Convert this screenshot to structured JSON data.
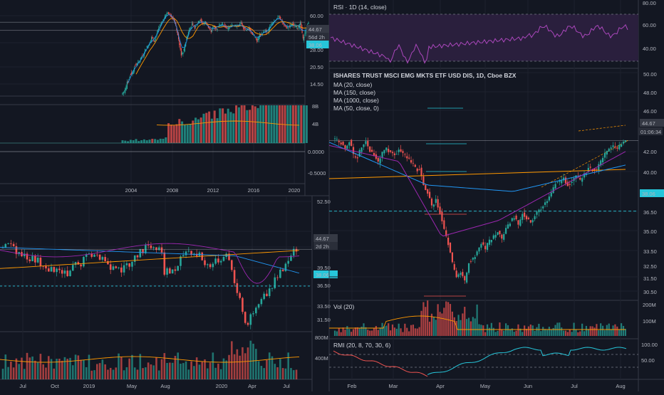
{
  "colors": {
    "bg": "#131722",
    "grid": "#1e222d",
    "up": "#26a69a",
    "down": "#ef5350",
    "axis": "#b2b5be",
    "highlight": "#26c6da",
    "rsi_bg": "#3d2556",
    "rsi_line": "#9c27b0",
    "ma20": "#f5f5f5",
    "ma150": "#2196f3",
    "ma1000": "#ff9800",
    "ma50": "#9c27b0",
    "sep": "#363a45"
  },
  "chart_data": [
    {
      "id": "monthly",
      "type": "candlestick",
      "x_labels": [
        "2004",
        "2008",
        "2012",
        "2016",
        "2020"
      ],
      "price_axis": [
        "60.00",
        "44.67",
        "38.06",
        "28.00",
        "20.50",
        "14.50"
      ],
      "last_price": "44.67",
      "countdown": "56d 2h",
      "horizontal_level": "38.06",
      "volume_axis": [
        "8B",
        "4B"
      ],
      "oscillator_axis": [
        "0.0000",
        "-0.5000"
      ],
      "ylim": [
        10,
        64
      ],
      "series": [
        {
          "type": "candle",
          "values": [
            [
              2003.5,
              11,
              12
            ],
            [
              2003.75,
              12,
              13.5
            ],
            [
              2004,
              13.5,
              16
            ],
            [
              2004.25,
              16,
              17
            ],
            [
              2004.5,
              17,
              19.5
            ],
            [
              2004.75,
              19.5,
              20
            ],
            [
              2005,
              20,
              22
            ],
            [
              2005.25,
              22,
              24
            ],
            [
              2005.5,
              24,
              27
            ],
            [
              2005.75,
              27,
              29
            ],
            [
              2006,
              29,
              33
            ],
            [
              2006.25,
              33,
              31
            ],
            [
              2006.5,
              31,
              36
            ],
            [
              2006.75,
              36,
              41
            ],
            [
              2007,
              41,
              45
            ],
            [
              2007.25,
              45,
              50
            ],
            [
              2007.5,
              50,
              54
            ],
            [
              2007.75,
              54,
              51
            ],
            [
              2008,
              51,
              48
            ],
            [
              2008.25,
              48,
              41
            ],
            [
              2008.5,
              41,
              32
            ],
            [
              2008.75,
              32,
              24
            ],
            [
              2009,
              24,
              26
            ],
            [
              2009.25,
              26,
              33
            ],
            [
              2009.5,
              33,
              39
            ],
            [
              2009.75,
              39,
              43
            ],
            [
              2010,
              43,
              40
            ],
            [
              2010.25,
              40,
              44
            ],
            [
              2010.5,
              44,
              47
            ],
            [
              2010.75,
              47,
              43
            ],
            [
              2011,
              43,
              45
            ],
            [
              2011.25,
              45,
              40
            ],
            [
              2011.5,
              40,
              37
            ],
            [
              2011.75,
              37,
              42
            ],
            [
              2012,
              42,
              39
            ],
            [
              2012.25,
              39,
              42
            ],
            [
              2012.5,
              42,
              43
            ],
            [
              2012.75,
              43,
              42
            ],
            [
              2013,
              42,
              39
            ],
            [
              2013.25,
              39,
              41
            ],
            [
              2013.5,
              41,
              42
            ],
            [
              2013.75,
              42,
              42
            ],
            [
              2014,
              42,
              41
            ],
            [
              2014.25,
              41,
              44
            ],
            [
              2014.5,
              44,
              40
            ],
            [
              2014.75,
              40,
              38
            ],
            [
              2015,
              38,
              40
            ],
            [
              2015.25,
              40,
              36
            ],
            [
              2015.5,
              36,
              34
            ],
            [
              2015.75,
              34,
              31
            ],
            [
              2016,
              31,
              35
            ],
            [
              2016.25,
              35,
              36
            ],
            [
              2016.5,
              36,
              38
            ],
            [
              2016.75,
              38,
              37
            ],
            [
              2017,
              37,
              42
            ],
            [
              2017.25,
              42,
              45
            ],
            [
              2017.5,
              45,
              47
            ],
            [
              2017.75,
              47,
              50
            ],
            [
              2018,
              50,
              46
            ],
            [
              2018.25,
              46,
              42
            ],
            [
              2018.5,
              42,
              40
            ],
            [
              2018.75,
              40,
              41
            ],
            [
              2019,
              41,
              43
            ],
            [
              2019.25,
              43,
              42
            ],
            [
              2019.5,
              42,
              40
            ],
            [
              2019.75,
              40,
              44
            ],
            [
              2020,
              44,
              32
            ],
            [
              2020.25,
              32,
              38
            ],
            [
              2020.5,
              38,
              44.67
            ]
          ]
        }
      ]
    },
    {
      "id": "weekly",
      "type": "candlestick",
      "x_labels": [
        "Jul",
        "Oct",
        "2019",
        "May",
        "Aug",
        "2020",
        "Apr",
        "Jul"
      ],
      "price_axis": [
        "52.50",
        "44.67",
        "39.50",
        "38.06",
        "36.50",
        "33.50",
        "31.50"
      ],
      "last_price": "44.67",
      "countdown": "2d 2h",
      "horizontal_level": "38.06",
      "volume_axis": [
        "800M",
        "400M"
      ],
      "ylim": [
        30,
        53
      ]
    },
    {
      "id": "daily",
      "type": "candlestick",
      "title": "ISHARES TRUST MSCI EMG MKTS ETF USD DIS, 1D, Cboe BZX",
      "indicators": [
        "MA (20, close)",
        "MA (150, close)",
        "MA (1000, close)",
        "MA (50, close, 0)"
      ],
      "x_labels": [
        "Feb",
        "Mar",
        "Apr",
        "May",
        "Jun",
        "Jul",
        "Aug"
      ],
      "price_axis": [
        "50.00",
        "48.00",
        "46.00",
        "44.67",
        "42.00",
        "40.00",
        "38.06",
        "36.50",
        "35.00",
        "33.50",
        "32.50",
        "31.50",
        "30.50"
      ],
      "last_price": "44.67",
      "countdown": "01:06:34",
      "horizontal_level": "38.06",
      "ylim": [
        30,
        51
      ],
      "series": [
        {
          "name": "close",
          "values": [
            44.8,
            44.3,
            43.9,
            44.5,
            43.4,
            43.0,
            44.0,
            44.6,
            43.6,
            43.2,
            42.7,
            43.6,
            44.0,
            43.6,
            43.3,
            43.8,
            43.5,
            43.0,
            42.6,
            42.2,
            41.9,
            40.5,
            39.7,
            38.6,
            39.2,
            37.8,
            36.4,
            34.9,
            33.3,
            31.9,
            32.3,
            31.6,
            33.2,
            33.7,
            34.3,
            35.0,
            34.5,
            35.4,
            35.8,
            36.1,
            35.5,
            36.5,
            36.9,
            37.4,
            36.8,
            37.8,
            37.3,
            37.0,
            37.6,
            38.2,
            38.5,
            39.0,
            39.8,
            40.6,
            40.9,
            41.2,
            40.4,
            40.8,
            41.4,
            41.0,
            41.6,
            42.1,
            41.8,
            42.0,
            42.8,
            43.5,
            43.9,
            44.2,
            43.9,
            44.3,
            44.67
          ]
        }
      ],
      "volume_axis": [
        "200M",
        "100M"
      ],
      "volume_title": "Vol (20)",
      "rmi_title": "RMI (20, 8, 70, 30, 6)",
      "rmi_axis": [
        "100.00",
        "50.00"
      ]
    },
    {
      "id": "rsi",
      "type": "line",
      "title": "RSI · 1D (14, close)",
      "y_axis": [
        "80.00",
        "60.00",
        "40.00"
      ],
      "ylim": [
        30,
        80
      ]
    }
  ]
}
